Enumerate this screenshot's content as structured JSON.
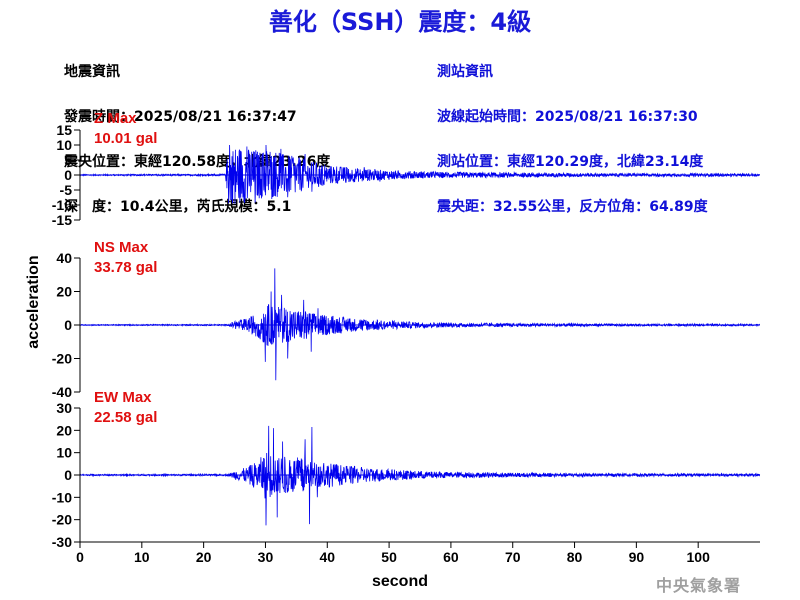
{
  "header": {
    "title": "善化（SSH）震度：4級",
    "quake_info": {
      "heading": "地震資訊",
      "time": "發震時間：2025/08/21 16:37:47",
      "location": "震央位置：東經120.58度，北緯23.26度",
      "depth": "深　度：10.4公里，芮氏規模：5.1"
    },
    "station_info": {
      "heading": "測站資訊",
      "start_time": "波線起始時間：2025/08/21 16:37:30",
      "location": "測站位置：東經120.29度，北緯23.14度",
      "distance": "震央距：32.55公里，反方位角：64.89度"
    }
  },
  "watermark": "中央氣象署",
  "colors": {
    "title": "#1a1ad8",
    "station_text": "#1010d8",
    "trace": "#0000ee",
    "max_label": "#e01010",
    "axis": "#000000"
  },
  "chart_data": {
    "type": "line",
    "xlabel": "second",
    "ylabel": "acceleration",
    "xlim": [
      0,
      110
    ],
    "x_ticks": [
      0,
      10,
      20,
      30,
      40,
      50,
      60,
      70,
      80,
      90,
      100
    ],
    "panels": [
      {
        "component": "Z",
        "max_label": "Z Max",
        "max_value": "10.01 gal",
        "ylim": [
          -15,
          15
        ],
        "y_ticks": [
          15,
          10,
          5,
          0,
          -5,
          -10,
          -15
        ],
        "envelope": [
          [
            0,
            0.2
          ],
          [
            23.5,
            0.3
          ],
          [
            24,
            9.5
          ],
          [
            26,
            9.8
          ],
          [
            28,
            8.5
          ],
          [
            30,
            8.0
          ],
          [
            32,
            7.5
          ],
          [
            34,
            6.5
          ],
          [
            36,
            5.5
          ],
          [
            38,
            4.5
          ],
          [
            40,
            3.2
          ],
          [
            44,
            2.5
          ],
          [
            48,
            1.8
          ],
          [
            52,
            1.4
          ],
          [
            56,
            1.1
          ],
          [
            60,
            1.0
          ],
          [
            70,
            0.8
          ],
          [
            80,
            0.6
          ],
          [
            90,
            0.5
          ],
          [
            100,
            0.5
          ],
          [
            110,
            0.4
          ]
        ],
        "peaks": [
          [
            24.2,
            10.0
          ],
          [
            25.1,
            -9.6
          ],
          [
            27.0,
            9.5
          ],
          [
            28.3,
            -9.2
          ],
          [
            30.1,
            10.01
          ],
          [
            31.0,
            -8.0
          ],
          [
            32.5,
            8.7
          ],
          [
            33.6,
            -7.4
          ],
          [
            36.4,
            7.0
          ],
          [
            37.5,
            -5.6
          ],
          [
            46.0,
            2.6
          ],
          [
            48.5,
            -2.2
          ]
        ]
      },
      {
        "component": "NS",
        "max_label": "NS Max",
        "max_value": "33.78 gal",
        "ylim": [
          -40,
          40
        ],
        "y_ticks": [
          40,
          20,
          0,
          -20,
          -40
        ],
        "envelope": [
          [
            0,
            0.3
          ],
          [
            24,
            0.4
          ],
          [
            25,
            2.5
          ],
          [
            27,
            4.0
          ],
          [
            29,
            8.0
          ],
          [
            30,
            13.0
          ],
          [
            32,
            11.0
          ],
          [
            34,
            10.0
          ],
          [
            36,
            9.0
          ],
          [
            38,
            7.0
          ],
          [
            40,
            6.0
          ],
          [
            44,
            4.0
          ],
          [
            48,
            3.0
          ],
          [
            52,
            2.2
          ],
          [
            56,
            1.6
          ],
          [
            60,
            1.3
          ],
          [
            70,
            1.0
          ],
          [
            80,
            0.8
          ],
          [
            90,
            0.6
          ],
          [
            100,
            0.6
          ],
          [
            110,
            0.5
          ]
        ],
        "peaks": [
          [
            30.0,
            -22.0
          ],
          [
            30.9,
            20.0
          ],
          [
            31.5,
            33.78
          ],
          [
            31.7,
            -33.0
          ],
          [
            32.6,
            18.0
          ],
          [
            33.6,
            -20.0
          ],
          [
            36.2,
            15.0
          ],
          [
            37.4,
            -16.0
          ],
          [
            38.5,
            10.0
          ]
        ]
      },
      {
        "component": "EW",
        "max_label": "EW Max",
        "max_value": "22.58 gal",
        "ylim": [
          -30,
          30
        ],
        "y_ticks": [
          30,
          20,
          10,
          0,
          -10,
          -20,
          -30
        ],
        "envelope": [
          [
            0,
            0.3
          ],
          [
            24,
            0.4
          ],
          [
            25,
            2.0
          ],
          [
            27,
            3.5
          ],
          [
            29,
            7.0
          ],
          [
            30,
            11.0
          ],
          [
            32,
            9.0
          ],
          [
            34,
            8.0
          ],
          [
            36,
            8.0
          ],
          [
            38,
            6.0
          ],
          [
            40,
            5.5
          ],
          [
            44,
            4.0
          ],
          [
            48,
            3.0
          ],
          [
            52,
            2.2
          ],
          [
            56,
            1.6
          ],
          [
            60,
            1.3
          ],
          [
            70,
            1.0
          ],
          [
            80,
            0.8
          ],
          [
            90,
            0.6
          ],
          [
            100,
            0.6
          ],
          [
            110,
            0.5
          ]
        ],
        "peaks": [
          [
            30.1,
            -22.58
          ],
          [
            30.5,
            22.0
          ],
          [
            31.3,
            21.0
          ],
          [
            31.9,
            -19.0
          ],
          [
            32.8,
            15.0
          ],
          [
            36.4,
            16.0
          ],
          [
            37.1,
            -22.0
          ],
          [
            37.5,
            21.5
          ],
          [
            38.4,
            -10.0
          ]
        ]
      }
    ]
  }
}
